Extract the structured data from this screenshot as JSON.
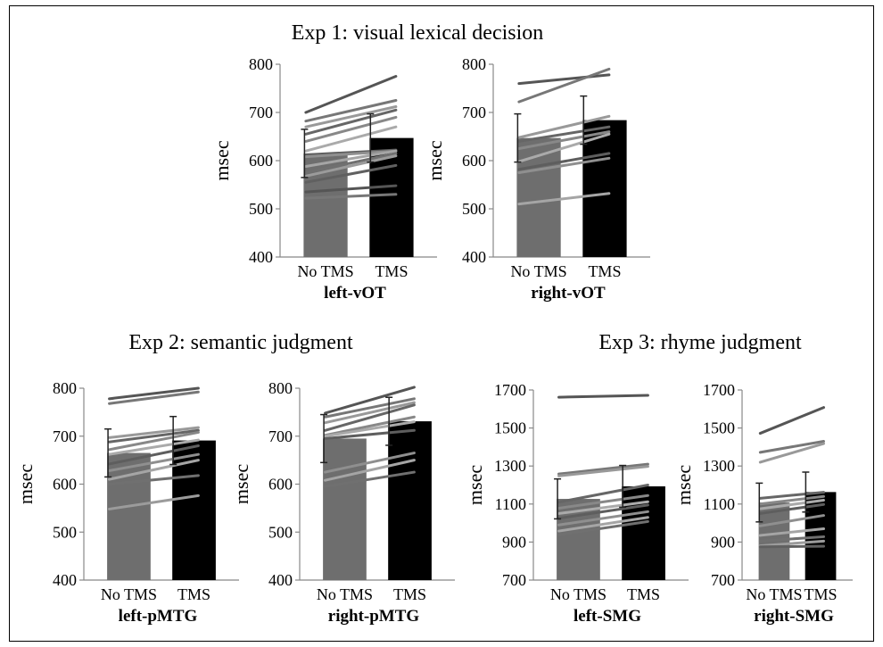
{
  "chart_data": [
    {
      "type": "bar",
      "title": "Exp 1: visual lexical decision",
      "xlabel": "left-vOT",
      "ylabel": "msec",
      "ylim": [
        400,
        800
      ],
      "yticks": [
        400,
        500,
        600,
        700,
        800
      ],
      "categories": [
        "No TMS",
        "TMS"
      ],
      "values": [
        615,
        647
      ],
      "error": [
        50,
        50
      ],
      "subjects": [
        [
          700,
          775
        ],
        [
          682,
          725
        ],
        [
          670,
          712
        ],
        [
          655,
          705
        ],
        [
          640,
          690
        ],
        [
          620,
          670
        ],
        [
          612,
          622
        ],
        [
          608,
          620
        ],
        [
          588,
          620
        ],
        [
          575,
          615
        ],
        [
          568,
          610
        ],
        [
          555,
          590
        ],
        [
          535,
          548
        ],
        [
          522,
          530
        ]
      ]
    },
    {
      "type": "bar",
      "title": "",
      "xlabel": "right-vOT",
      "ylabel": "msec",
      "ylim": [
        400,
        800
      ],
      "yticks": [
        400,
        500,
        600,
        700,
        800
      ],
      "categories": [
        "No TMS",
        "TMS"
      ],
      "values": [
        647,
        684
      ],
      "error": [
        50,
        50
      ],
      "subjects": [
        [
          760,
          778
        ],
        [
          722,
          790
        ],
        [
          648,
          692
        ],
        [
          640,
          670
        ],
        [
          625,
          660
        ],
        [
          598,
          655
        ],
        [
          582,
          615
        ],
        [
          575,
          605
        ],
        [
          510,
          532
        ]
      ]
    },
    {
      "type": "bar",
      "title": "Exp 2: semantic judgment",
      "xlabel": "left-pMTG",
      "ylabel": "msec",
      "ylim": [
        400,
        800
      ],
      "yticks": [
        400,
        500,
        600,
        700,
        800
      ],
      "categories": [
        "No TMS",
        "TMS"
      ],
      "values": [
        665,
        691
      ],
      "error": [
        50,
        50
      ],
      "subjects": [
        [
          778,
          800
        ],
        [
          768,
          792
        ],
        [
          697,
          718
        ],
        [
          688,
          712
        ],
        [
          672,
          708
        ],
        [
          662,
          692
        ],
        [
          642,
          680
        ],
        [
          628,
          662
        ],
        [
          610,
          650
        ],
        [
          600,
          618
        ],
        [
          548,
          576
        ]
      ]
    },
    {
      "type": "bar",
      "title": "",
      "xlabel": "right-pMTG",
      "ylabel": "msec",
      "ylim": [
        400,
        800
      ],
      "yticks": [
        400,
        500,
        600,
        700,
        800
      ],
      "categories": [
        "No TMS",
        "TMS"
      ],
      "values": [
        695,
        731
      ],
      "error": [
        50,
        50
      ],
      "subjects": [
        [
          748,
          802
        ],
        [
          740,
          778
        ],
        [
          728,
          770
        ],
        [
          712,
          765
        ],
        [
          702,
          740
        ],
        [
          700,
          730
        ],
        [
          695,
          712
        ],
        [
          625,
          665
        ],
        [
          608,
          650
        ],
        [
          595,
          625
        ]
      ]
    },
    {
      "type": "bar",
      "title": "Exp 3: rhyme judgment",
      "xlabel": "left-SMG",
      "ylabel": "msec",
      "ylim": [
        700,
        1700
      ],
      "yticks": [
        700,
        900,
        1100,
        1300,
        1500,
        1700
      ],
      "categories": [
        "No TMS",
        "TMS"
      ],
      "values": [
        1127,
        1193
      ],
      "error": [
        105,
        110
      ],
      "subjects": [
        [
          1662,
          1672
        ],
        [
          1258,
          1310
        ],
        [
          1248,
          1298
        ],
        [
          1110,
          1200
        ],
        [
          1078,
          1145
        ],
        [
          1050,
          1112
        ],
        [
          1025,
          1095
        ],
        [
          990,
          1060
        ],
        [
          958,
          1030
        ],
        [
          938,
          1008
        ]
      ]
    },
    {
      "type": "bar",
      "title": "",
      "xlabel": "right-SMG",
      "ylabel": "msec",
      "ylim": [
        700,
        1700
      ],
      "yticks": [
        700,
        900,
        1100,
        1300,
        1500,
        1700
      ],
      "categories": [
        "No TMS",
        "TMS"
      ],
      "values": [
        1108,
        1163
      ],
      "error": [
        102,
        105
      ],
      "subjects": [
        [
          1472,
          1608
        ],
        [
          1372,
          1430
        ],
        [
          1320,
          1418
        ],
        [
          1130,
          1162
        ],
        [
          1100,
          1140
        ],
        [
          1075,
          1120
        ],
        [
          1050,
          1098
        ],
        [
          985,
          1040
        ],
        [
          935,
          970
        ],
        [
          905,
          928
        ],
        [
          880,
          905
        ],
        [
          875,
          878
        ]
      ]
    }
  ]
}
